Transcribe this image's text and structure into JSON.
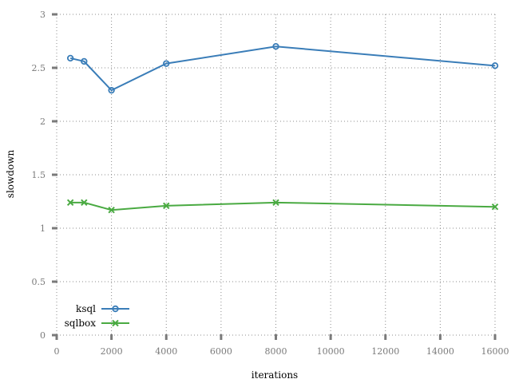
{
  "chart_data": {
    "type": "line",
    "xlabel": "iterations",
    "ylabel": "slowdown",
    "xlim": [
      0,
      16000
    ],
    "ylim": [
      0,
      3
    ],
    "xticks": [
      0,
      2000,
      4000,
      6000,
      8000,
      10000,
      12000,
      14000,
      16000
    ],
    "yticks": [
      0,
      0.5,
      1,
      1.5,
      2,
      2.5,
      3
    ],
    "ytick_labels": [
      "0",
      "0.5",
      "1",
      "1.5",
      "2",
      "2.5",
      "3"
    ],
    "grid": true,
    "legend_position": "bottom-left",
    "series": [
      {
        "name": "ksql",
        "color": "#3a7db8",
        "marker": "circle",
        "x": [
          500,
          1000,
          2000,
          4000,
          8000,
          16000
        ],
        "y": [
          2.59,
          2.56,
          2.29,
          2.54,
          2.7,
          2.52
        ]
      },
      {
        "name": "sqlbox",
        "color": "#4aaa42",
        "marker": "cross",
        "x": [
          500,
          1000,
          2000,
          4000,
          8000,
          16000
        ],
        "y": [
          1.24,
          1.24,
          1.17,
          1.21,
          1.24,
          1.2
        ]
      }
    ]
  }
}
